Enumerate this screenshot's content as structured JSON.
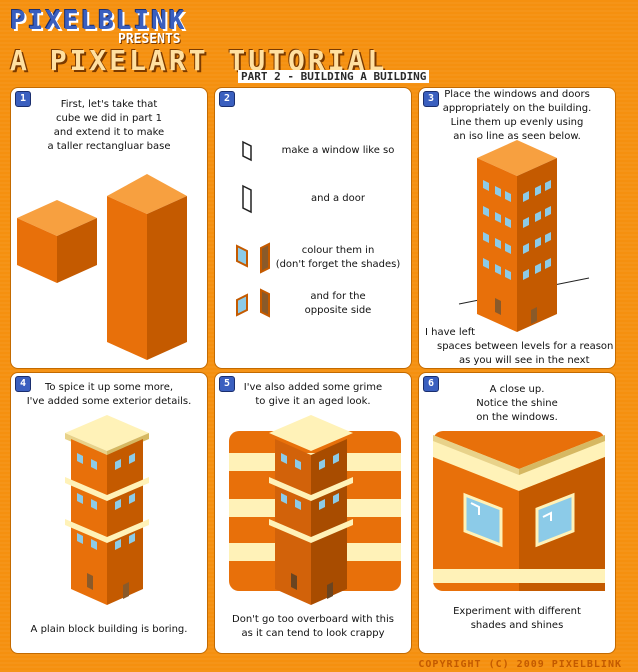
{
  "header": {
    "brand": "PIXELBLINK",
    "presents": "PRESENTS",
    "title": "A PIXELART TUTORIAL",
    "part": "PART 2 - BUILDING A BUILDING"
  },
  "panels": [
    {
      "number": "1",
      "lines": [
        "First, let's take that",
        "cube we did in part 1",
        "and extend it to make",
        "a taller rectangluar base"
      ]
    },
    {
      "number": "2",
      "captions": [
        "make a window like so",
        "and a door",
        "colour them in",
        "(don't forget the shades)",
        "and for the",
        "opposite side"
      ]
    },
    {
      "number": "3",
      "lines": [
        "Place the windows and doors",
        "appropriately on the building.",
        "Line them up evenly using",
        "an iso line as seen below."
      ],
      "bottom": [
        "I have left",
        "spaces between  levels for a reason",
        "as you will see in the next frame"
      ]
    },
    {
      "number": "4",
      "lines": [
        "To spice it up some more,",
        "I've added some exterior details."
      ],
      "bottom": [
        "A plain block building is boring."
      ]
    },
    {
      "number": "5",
      "lines": [
        "I've also added some grime",
        "to give it an aged look."
      ],
      "bottom": [
        "Don't go too overboard with this",
        "as it can tend to look crappy"
      ]
    },
    {
      "number": "6",
      "lines": [
        "A close up.",
        "Notice the shine",
        "on the windows."
      ],
      "bottom": [
        "Experiment with different",
        "shades and shines"
      ]
    }
  ],
  "copyright": "COPYRIGHT (C) 2009 PIXELBLINK",
  "colors": {
    "orange": "#f5900f",
    "building": "#e8700a",
    "cream": "#fff2b8",
    "window": "#8ccbe8",
    "brand_blue": "#3a5fbf"
  }
}
